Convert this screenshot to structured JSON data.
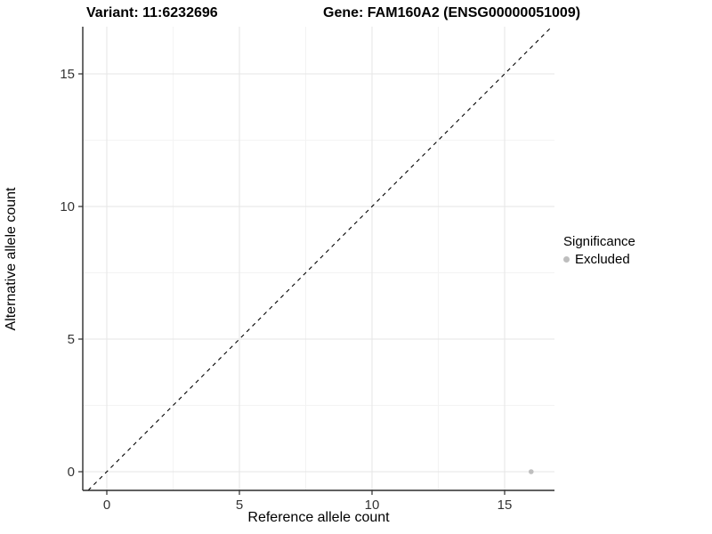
{
  "titles": {
    "variant": "Variant: 11:6232696",
    "gene": "Gene: FAM160A2 (ENSG00000051009)"
  },
  "chart_data": {
    "type": "scatter",
    "title_left": "Variant: 11:6232696",
    "title_right": "Gene: FAM160A2 (ENSG00000051009)",
    "xlabel": "Reference allele count",
    "ylabel": "Alternative allele count",
    "xticks": [
      0,
      5,
      10,
      15
    ],
    "yticks": [
      0,
      5,
      10,
      15
    ],
    "xlim": [
      -0.9,
      16.9
    ],
    "ylim": [
      -0.75,
      16.8
    ],
    "grid": {
      "major": true,
      "minor": true
    },
    "points": [
      {
        "x": 16,
        "y": 0,
        "series": "Excluded"
      }
    ],
    "reference_line": {
      "type": "identity",
      "style": "dashed",
      "slope": 1,
      "intercept": 0
    },
    "legend": {
      "title": "Significance",
      "position": "right",
      "items": [
        {
          "label": "Excluded",
          "color": "#bebebe"
        }
      ]
    },
    "colors": {
      "point": "#bebebe",
      "grid_major": "#e6e6e6",
      "grid_minor": "#f3f3f3",
      "axis_line": "#2b2b2b",
      "dashed_line": "#000000",
      "tick_text": "#333333",
      "background": "#ffffff"
    }
  }
}
